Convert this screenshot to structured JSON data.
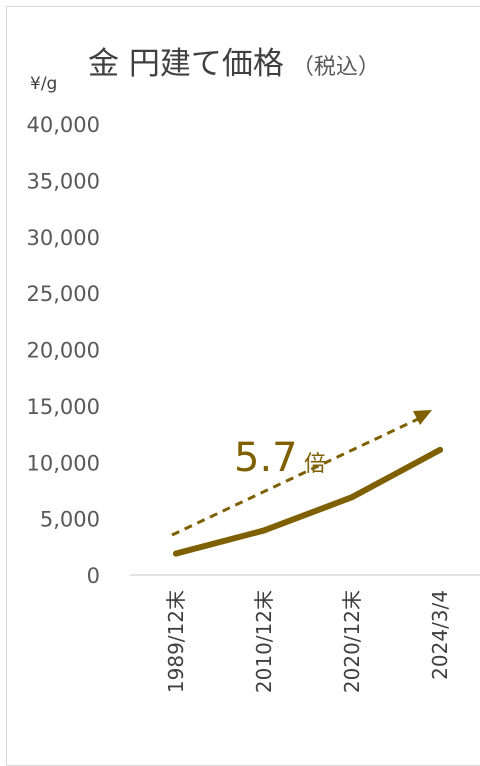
{
  "chart_data": {
    "type": "line",
    "title": "金 円建て価格",
    "subtitle": "（税込）",
    "ylabel": "¥/g",
    "categories": [
      "1989/12末",
      "2010/12末",
      "2020/12末",
      "2024/3/4"
    ],
    "series": [
      {
        "values": [
          1900,
          3950,
          6900,
          11100
        ],
        "color": "#7f6000"
      }
    ],
    "ylim": [
      0,
      40000
    ],
    "yticks": [
      0,
      5000,
      10000,
      15000,
      20000,
      25000,
      30000,
      35000,
      40000
    ],
    "ytick_labels": [
      "0",
      "5,000",
      "10,000",
      "15,000",
      "20,000",
      "25,000",
      "30,000",
      "35,000",
      "40,000"
    ],
    "grid": false,
    "annotation": {
      "value": "5.7",
      "suffix": "倍",
      "color": "#7f6000"
    }
  }
}
